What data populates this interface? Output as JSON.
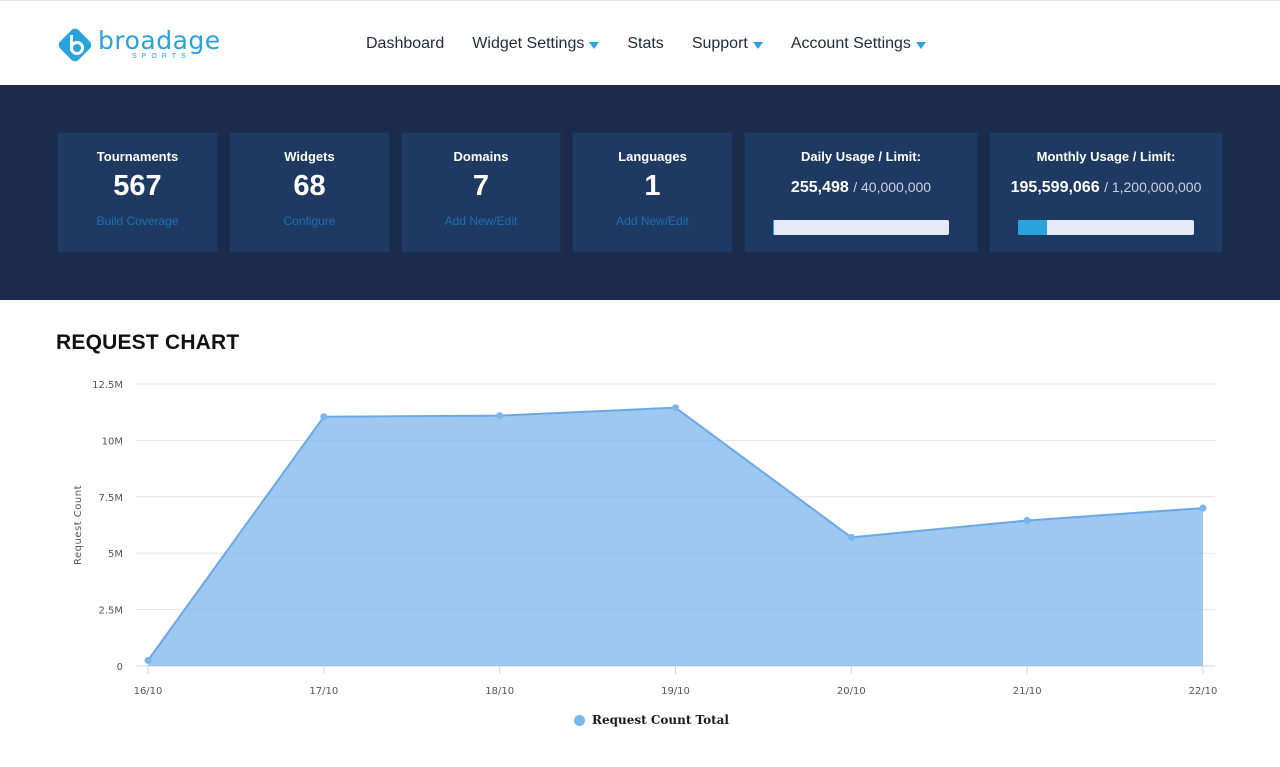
{
  "brand": {
    "name": "broadage",
    "sub": "SPORTS",
    "color": "#2aa3dd"
  },
  "nav": [
    {
      "label": "Dashboard",
      "dropdown": false
    },
    {
      "label": "Widget Settings",
      "dropdown": true
    },
    {
      "label": "Stats",
      "dropdown": false
    },
    {
      "label": "Support",
      "dropdown": true
    },
    {
      "label": "Account Settings",
      "dropdown": true
    }
  ],
  "stats": [
    {
      "title": "Tournaments",
      "value": "567",
      "link": "Build Coverage"
    },
    {
      "title": "Widgets",
      "value": "68",
      "link": "Configure"
    },
    {
      "title": "Domains",
      "value": "7",
      "link": "Add New/Edit"
    },
    {
      "title": "Languages",
      "value": "1",
      "link": "Add New/Edit"
    }
  ],
  "usage": [
    {
      "title": "Daily Usage / Limit:",
      "used": "255,498",
      "limit": "/ 40,000,000",
      "fraction": 0.0064
    },
    {
      "title": "Monthly Usage / Limit:",
      "used": "195,599,066",
      "limit": "/ 1,200,000,000",
      "fraction": 0.163
    }
  ],
  "chart_title": "REQUEST CHART",
  "chart_data": {
    "type": "area",
    "categories": [
      "16/10",
      "17/10",
      "18/10",
      "19/10",
      "20/10",
      "21/10",
      "22/10"
    ],
    "series": [
      {
        "name": "Request Count Total",
        "values": [
          250000,
          11050000,
          11100000,
          11450000,
          5700000,
          6450000,
          7000000
        ]
      }
    ],
    "ylabel": "Request Count",
    "ylim": [
      0,
      12500000
    ],
    "yticks": [
      0,
      2500000,
      5000000,
      7500000,
      10000000,
      12500000
    ],
    "ytick_labels": [
      "0",
      "2.5M",
      "5M",
      "7.5M",
      "10M",
      "12.5M"
    ],
    "grid": true,
    "legend": "bottom-center",
    "color": "#7cb5ec"
  }
}
